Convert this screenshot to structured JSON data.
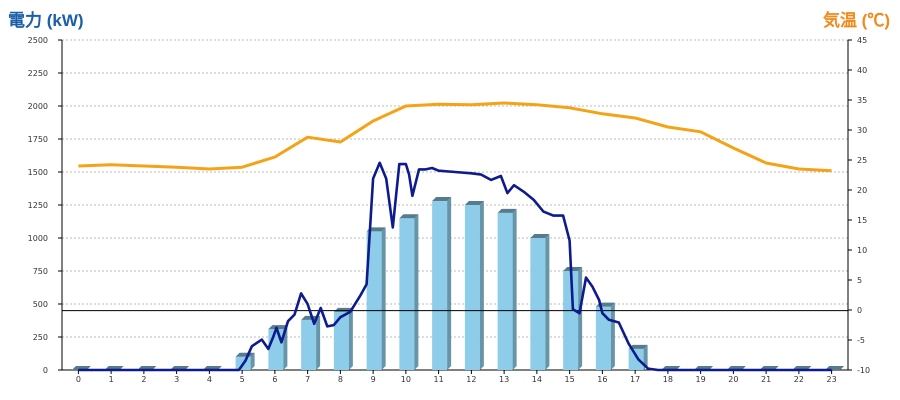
{
  "chart_data": {
    "type": "bar",
    "title_left": "電力 (kW)",
    "title_right": "気温 (℃)",
    "categories": [
      "0",
      "1",
      "2",
      "3",
      "4",
      "5",
      "6",
      "7",
      "8",
      "9",
      "10",
      "11",
      "12",
      "13",
      "14",
      "15",
      "16",
      "17",
      "18",
      "19",
      "20",
      "21",
      "22",
      "23"
    ],
    "y_left": {
      "min": 0,
      "max": 2500,
      "ticks": [
        "0",
        "250",
        "500",
        "750",
        "1000",
        "1250",
        "1500",
        "1750",
        "2000",
        "2250",
        "2500"
      ]
    },
    "y_right": {
      "min": -10,
      "max": 45,
      "ticks": [
        "-10",
        "-5",
        "0",
        "5",
        "10",
        "15",
        "20",
        "25",
        "30",
        "35",
        "40",
        "45"
      ]
    },
    "grid": true,
    "series": [
      {
        "kind": "bar",
        "axis": "left",
        "color": "#8dcdea",
        "values": [
          0,
          0,
          0,
          0,
          0,
          100,
          310,
          380,
          440,
          1050,
          1150,
          1280,
          1250,
          1190,
          1000,
          750,
          480,
          160,
          0,
          0,
          0,
          0,
          0,
          0
        ]
      },
      {
        "kind": "line",
        "axis": "left",
        "color": "#0d1b8c",
        "x": [
          0,
          4.9,
          5.1,
          5.3,
          5.6,
          5.8,
          5.95,
          6.05,
          6.2,
          6.4,
          6.6,
          6.8,
          7.0,
          7.2,
          7.4,
          7.6,
          7.8,
          8.0,
          8.3,
          8.6,
          8.8,
          9.0,
          9.2,
          9.4,
          9.6,
          9.8,
          9.9,
          10.0,
          10.1,
          10.2,
          10.4,
          10.6,
          10.8,
          11.0,
          11.5,
          12.0,
          12.3,
          12.6,
          12.9,
          13.1,
          13.3,
          13.6,
          13.9,
          14.2,
          14.5,
          14.8,
          15.0,
          15.1,
          15.3,
          15.5,
          15.7,
          15.9,
          16.0,
          16.2,
          16.5,
          16.8,
          17.1,
          17.4,
          17.7,
          23
        ],
        "values": [
          0,
          0,
          70,
          180,
          230,
          160,
          250,
          320,
          210,
          370,
          420,
          580,
          500,
          350,
          470,
          330,
          340,
          400,
          440,
          560,
          650,
          1450,
          1570,
          1450,
          1080,
          1560,
          1560,
          1560,
          1480,
          1320,
          1520,
          1520,
          1530,
          1510,
          1500,
          1490,
          1480,
          1440,
          1470,
          1340,
          1400,
          1350,
          1290,
          1200,
          1170,
          1170,
          980,
          460,
          430,
          700,
          630,
          530,
          430,
          380,
          360,
          200,
          80,
          10,
          0,
          0
        ]
      },
      {
        "kind": "line",
        "axis": "right",
        "color": "#f5a316",
        "values": [
          24,
          24.2,
          24,
          23.8,
          23.5,
          23.8,
          25.5,
          28.8,
          28,
          31.5,
          34,
          34.3,
          34.2,
          34.5,
          34.2,
          33.7,
          32.7,
          32,
          30.5,
          29.7,
          27,
          24.5,
          23.5,
          23.2
        ]
      }
    ],
    "reference_line": {
      "axis": "left",
      "value": 450,
      "color": "#000000"
    }
  }
}
